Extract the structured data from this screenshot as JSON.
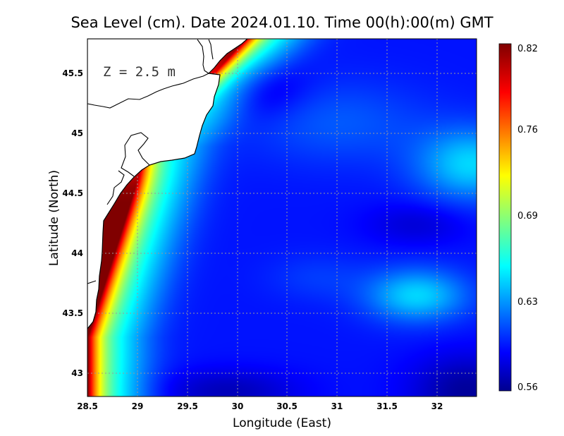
{
  "chart_data": {
    "type": "heatmap",
    "title": "Sea Level (cm). Date 2024.01.10. Time 00(h):00(m) GMT",
    "xlabel": "Longitude (East)",
    "ylabel": "Latitude (North)",
    "annotation": "Z = 2.5 m",
    "xlim": [
      28.5,
      32.4
    ],
    "ylim": [
      42.8,
      45.8
    ],
    "xticks": [
      28.5,
      29,
      29.5,
      30,
      30.5,
      31,
      31.5,
      32
    ],
    "xtick_labels": [
      "28.5",
      "29",
      "29.5",
      "30",
      "30.5",
      "31",
      "31.5",
      "32"
    ],
    "yticks": [
      43,
      43.5,
      44,
      44.5,
      45,
      45.5
    ],
    "ytick_labels": [
      "43",
      "43.5",
      "44",
      "44.5",
      "45",
      "45.5"
    ],
    "colorbar": {
      "min": 0.56,
      "max": 0.82,
      "ticks": [
        0.56,
        0.63,
        0.69,
        0.76,
        0.82
      ],
      "tick_labels": [
        "0.56",
        "0.63",
        "0.69",
        "0.76",
        "0.82"
      ],
      "colormap": "jet"
    },
    "grid": true,
    "field_summary": [
      {
        "region": "Romanian/Bulgarian coast near 28.6E 43.5-44.2N",
        "value": 0.82
      },
      {
        "region": "coastal band 28.8-29.3E",
        "value": 0.7
      },
      {
        "region": "Danube delta area 29.6E 45.2N",
        "value": 0.71
      },
      {
        "region": "open sea 29.5-30.5E 44-45N",
        "value": 0.6
      },
      {
        "region": "central field 30.5-31.5E",
        "value": 0.61
      },
      {
        "region": "east edge 32.2E 44.7N",
        "value": 0.65
      },
      {
        "region": "around 31.8E 43.7N",
        "value": 0.65
      },
      {
        "region": "south-east corner 32.2E 43.0N",
        "value": 0.565
      }
    ]
  }
}
